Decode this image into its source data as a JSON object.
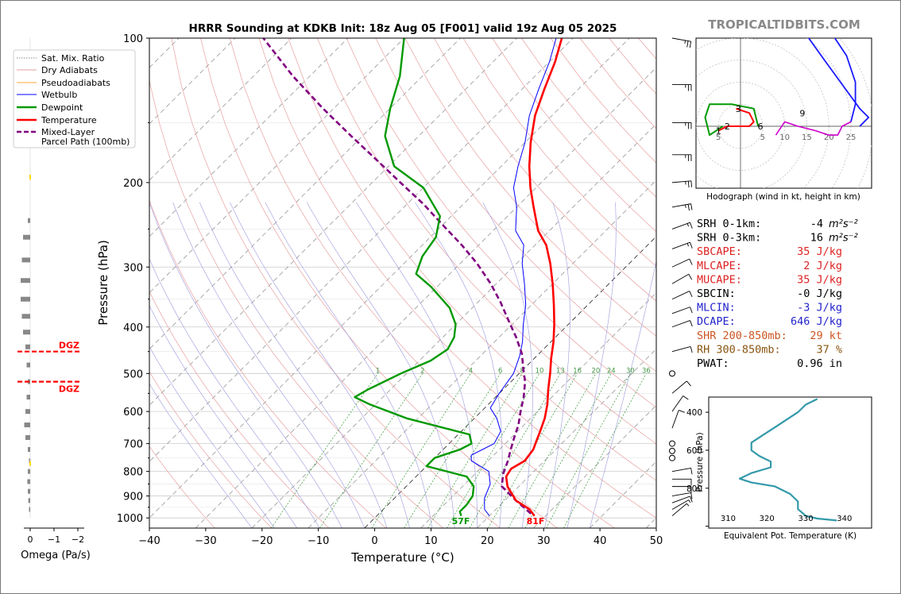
{
  "title": "HRRR Sounding at KDKB Init: 18z Aug 05 [F001] valid 19z Aug 05 2025",
  "watermark": "TROPICALTIDBITS.COM",
  "colors": {
    "temperature": "#ff0000",
    "dewpoint": "#009900",
    "wetbulb": "#0000ff",
    "parcel": "#800080",
    "dry_adiabat": "#e8a0a0",
    "moist_adiabat": "#9999dd",
    "mixing_ratio": "#339933",
    "hodo_blue": "#1a1aff",
    "hodo_magenta": "#cc00cc",
    "ept": "#3399aa",
    "red_text": "#dd2222",
    "blue_text": "#2222cc",
    "orange_text": "#cc5522",
    "brown_text": "#885511"
  },
  "skewt": {
    "xlabel": "Temperature (°C)",
    "ylabel": "Pressure (hPa)",
    "x_ticks": [
      "−40",
      "−30",
      "−20",
      "−10",
      "0",
      "10",
      "20",
      "30",
      "40",
      "50"
    ],
    "y_ticks": [
      "100",
      "200",
      "300",
      "400",
      "500",
      "600",
      "700",
      "800",
      "900",
      "1000"
    ],
    "mixing_ratio_labels": [
      "1",
      "2",
      "4",
      "6",
      "8",
      "10",
      "13",
      "16",
      "20",
      "24",
      "30",
      "36"
    ],
    "surface_temp_label": "81F",
    "surface_dew_label": "57F",
    "legend": [
      {
        "label": "Sat. Mix. Ratio",
        "style": "dotted"
      },
      {
        "label": "Dry Adiabats",
        "style": "dry"
      },
      {
        "label": "Pseudoadiabats",
        "style": "moist"
      },
      {
        "label": "Wetbulb",
        "style": "wetbulb"
      },
      {
        "label": "Dewpoint",
        "style": "dewpoint"
      },
      {
        "label": "Temperature",
        "style": "temperature"
      },
      {
        "label": "Mixed-Layer",
        "style": "parcel"
      },
      {
        "label": "Parcel Path (100mb)",
        "style": "none"
      }
    ]
  },
  "omega": {
    "xlabel": "Omega (Pa/s)",
    "x_ticks": [
      "0",
      "−1",
      "−2"
    ],
    "dgz_labels": [
      "DGZ",
      "DGZ"
    ]
  },
  "hodograph": {
    "caption": "Hodograph (wind in kt, height in km)",
    "ring_labels": [
      "5",
      "5",
      "10",
      "15",
      "20",
      "25"
    ],
    "height_labels": [
      "1",
      "2",
      "3",
      "6",
      "9"
    ],
    "markers": [
      "LM",
      "RM"
    ]
  },
  "params": [
    {
      "label": "SRH 0-1km:",
      "value": "-4",
      "unit": "m²s⁻²",
      "color": "#000000"
    },
    {
      "label": "SRH 0-3km:",
      "value": "16",
      "unit": "m²s⁻²",
      "color": "#000000"
    },
    {
      "label": "SBCAPE:",
      "value": "35 J/kg",
      "unit": "",
      "color": "#dd2222"
    },
    {
      "label": "MLCAPE:",
      "value": "2 J/kg",
      "unit": "",
      "color": "#dd2222"
    },
    {
      "label": "MUCAPE:",
      "value": "35 J/kg",
      "unit": "",
      "color": "#dd2222"
    },
    {
      "label": "SBCIN:",
      "value": "-0 J/kg",
      "unit": "",
      "color": "#000000"
    },
    {
      "label": "MLCIN:",
      "value": "-3 J/kg",
      "unit": "",
      "color": "#2222cc"
    },
    {
      "label": "DCAPE:",
      "value": "646 J/kg",
      "unit": "",
      "color": "#2222cc"
    },
    {
      "label": "SHR 200-850mb:",
      "value": "29 kt",
      "unit": "",
      "color": "#cc5522"
    },
    {
      "label": "RH 300-850mb:",
      "value": "37 %",
      "unit": "",
      "color": "#885511"
    },
    {
      "label": "PWAT:",
      "value": "0.96 in",
      "unit": "",
      "color": "#000000"
    }
  ],
  "ept_panel": {
    "xlabel": "Equivalent Pot. Temperature (K)",
    "ylabel": "Pressure (hPa)",
    "x_ticks": [
      "310",
      "320",
      "330",
      "340"
    ],
    "y_ticks": [
      "400",
      "600",
      "800"
    ]
  },
  "chart_data": [
    {
      "type": "line",
      "title": "HRRR Sounding at KDKB Init: 18z Aug 05 [F001] valid 19z Aug 05 2025",
      "xlabel": "Temperature (°C)",
      "ylabel": "Pressure (hPa)",
      "xlim": [
        -40,
        50
      ],
      "ylim": [
        1050,
        100
      ],
      "y_scale": "log",
      "grid": true,
      "legend_position": "left",
      "series": [
        {
          "name": "Temperature",
          "color": "#ff0000",
          "points": [
            [
              28,
              990
            ],
            [
              26,
              960
            ],
            [
              22,
              920
            ],
            [
              18,
              860
            ],
            [
              16,
              820
            ],
            [
              15.5,
              790
            ],
            [
              16.5,
              760
            ],
            [
              16,
              720
            ],
            [
              15,
              690
            ],
            [
              14,
              660
            ],
            [
              12.5,
              620
            ],
            [
              10.5,
              580
            ],
            [
              8,
              540
            ],
            [
              5.5,
              500
            ],
            [
              3,
              465
            ],
            [
              0.5,
              430
            ],
            [
              -2.5,
              395
            ],
            [
              -6,
              360
            ],
            [
              -10,
              325
            ],
            [
              -14,
              295
            ],
            [
              -18,
              270
            ],
            [
              -22,
              252
            ],
            [
              -27,
              225
            ],
            [
              -31,
              205
            ],
            [
              -35,
              185
            ],
            [
              -39,
              165
            ],
            [
              -43,
              145
            ],
            [
              -46,
              128
            ],
            [
              -49,
              112
            ],
            [
              -52,
              100
            ]
          ]
        },
        {
          "name": "Dewpoint",
          "color": "#009900",
          "points": [
            [
              15,
              990
            ],
            [
              14,
              970
            ],
            [
              14,
              940
            ],
            [
              13.5,
              900
            ],
            [
              12,
              860
            ],
            [
              9,
              820
            ],
            [
              0,
              780
            ],
            [
              0,
              750
            ],
            [
              3,
              720
            ],
            [
              4,
              700
            ],
            [
              2,
              670
            ],
            [
              -12,
              620
            ],
            [
              -21,
              580
            ],
            [
              -25,
              560
            ],
            [
              -24,
              540
            ],
            [
              -21,
              500
            ],
            [
              -18,
              470
            ],
            [
              -17,
              445
            ],
            [
              -18,
              420
            ],
            [
              -20,
              395
            ],
            [
              -24,
              365
            ],
            [
              -31,
              330
            ],
            [
              -36,
              310
            ],
            [
              -38,
              285
            ],
            [
              -39,
              260
            ],
            [
              -42,
              235
            ],
            [
              -50,
              205
            ],
            [
              -59,
              185
            ],
            [
              -66,
              160
            ],
            [
              -70,
              140
            ],
            [
              -74,
              120
            ],
            [
              -80,
              100
            ]
          ]
        },
        {
          "name": "Wetbulb",
          "color": "#0000ff",
          "points": [
            [
              20,
              990
            ],
            [
              18,
              960
            ],
            [
              16,
              910
            ],
            [
              14.5,
              850
            ],
            [
              12,
              800
            ],
            [
              7,
              760
            ],
            [
              6,
              740
            ],
            [
              7,
              720
            ],
            [
              8,
              700
            ],
            [
              7,
              660
            ],
            [
              4,
              620
            ],
            [
              1,
              590
            ],
            [
              0,
              550
            ],
            [
              -1,
              500
            ],
            [
              -3,
              460
            ],
            [
              -5,
              430
            ],
            [
              -8,
              395
            ],
            [
              -11,
              360
            ],
            [
              -15,
              325
            ],
            [
              -19,
              295
            ],
            [
              -22,
              270
            ],
            [
              -26,
              252
            ],
            [
              -30,
              225
            ],
            [
              -34,
              205
            ],
            [
              -37,
              185
            ],
            [
              -40,
              165
            ],
            [
              -44,
              145
            ],
            [
              -47,
              128
            ],
            [
              -50,
              112
            ],
            [
              -53,
              100
            ]
          ]
        },
        {
          "name": "Mixed-Layer Parcel Path (100mb)",
          "color": "#800080",
          "points": [
            [
              27,
              980
            ],
            [
              22,
              920
            ],
            [
              17,
              860
            ],
            [
              15,
              810
            ],
            [
              13.5,
              760
            ],
            [
              12,
              720
            ],
            [
              10.5,
              680
            ],
            [
              9,
              640
            ],
            [
              7,
              600
            ],
            [
              5,
              560
            ],
            [
              2.5,
              520
            ],
            [
              0,
              490
            ],
            [
              -3,
              455
            ],
            [
              -7,
              420
            ],
            [
              -11,
              390
            ],
            [
              -16,
              355
            ],
            [
              -21,
              325
            ],
            [
              -27,
              295
            ],
            [
              -33,
              270
            ],
            [
              -40,
              245
            ],
            [
              -47,
              222
            ],
            [
              -55,
              200
            ],
            [
              -63,
              180
            ],
            [
              -72,
              160
            ],
            [
              -82,
              140
            ],
            [
              -93,
              120
            ],
            [
              -105,
              100
            ]
          ]
        }
      ]
    },
    {
      "type": "line",
      "title": "",
      "xlabel": "Omega (Pa/s)",
      "xlim": [
        0.2,
        -2.2
      ],
      "ylim": [
        1050,
        100
      ],
      "series": [
        {
          "name": "Omega",
          "points": [
            [
              -0.1,
              240
            ],
            [
              -0.3,
              260
            ],
            [
              -0.35,
              290
            ],
            [
              -0.4,
              320
            ],
            [
              -0.4,
              350
            ],
            [
              -0.35,
              380
            ],
            [
              -0.3,
              410
            ],
            [
              -0.2,
              440
            ],
            [
              -0.15,
              480
            ],
            [
              -0.1,
              520
            ],
            [
              -0.15,
              560
            ],
            [
              -0.2,
              600
            ],
            [
              -0.25,
              640
            ],
            [
              -0.2,
              680
            ],
            [
              -0.1,
              720
            ],
            [
              -0.05,
              760
            ],
            [
              -0.1,
              800
            ],
            [
              -0.12,
              840
            ],
            [
              -0.1,
              880
            ],
            [
              -0.08,
              920
            ],
            [
              -0.05,
              960
            ]
          ]
        },
        {
          "name": "DGZ bounds",
          "levels": [
            450,
            520
          ]
        }
      ]
    },
    {
      "type": "line",
      "title": "",
      "xlabel": "",
      "xlim": [
        -25,
        30
      ],
      "ylim": [
        -28,
        40
      ],
      "series": [
        {
          "name": "Hodograph 0-3 km",
          "color": "#009900",
          "points": [
            [
              -4,
              0
            ],
            [
              -7,
              -2
            ],
            [
              -8,
              2
            ],
            [
              -7,
              5
            ],
            [
              -2,
              5
            ],
            [
              3,
              4
            ],
            [
              4,
              0
            ]
          ]
        },
        {
          "name": "Hodograph 0-1 km",
          "color": "#ff0000",
          "points": [
            [
              -5,
              -1
            ],
            [
              -3,
              0
            ],
            [
              2,
              0
            ],
            [
              3,
              1
            ],
            [
              2,
              3
            ],
            [
              -1,
              4
            ]
          ]
        },
        {
          "name": "Hodograph 3-9 km",
          "color": "#cc00cc",
          "points": [
            [
              8,
              -2
            ],
            [
              10,
              1
            ],
            [
              13,
              0
            ],
            [
              17,
              -1
            ],
            [
              20,
              -2
            ],
            [
              22,
              -2
            ],
            [
              23,
              0
            ],
            [
              25,
              1
            ]
          ]
        },
        {
          "name": "Hodograph 9-12 km",
          "color": "#1a1aff",
          "points": [
            [
              25,
              1
            ],
            [
              26,
              5
            ],
            [
              26,
              10
            ],
            [
              24,
              16
            ],
            [
              20,
              22
            ],
            [
              15,
              24
            ],
            [
              14,
              22
            ],
            [
              19,
              15
            ],
            [
              27,
              4
            ],
            [
              29,
              2
            ],
            [
              27,
              0
            ]
          ]
        }
      ]
    },
    {
      "type": "line",
      "title": "",
      "xlabel": "Equivalent Pot. Temperature (K)",
      "ylabel": "Pressure (hPa)",
      "xlim": [
        305,
        347
      ],
      "ylim": [
        1010,
        320
      ],
      "series": [
        {
          "name": "Theta-E",
          "color": "#3399aa",
          "points": [
            [
              333,
              330
            ],
            [
              330,
              360
            ],
            [
              328,
              400
            ],
            [
              325,
              440
            ],
            [
              322,
              480
            ],
            [
              319,
              520
            ],
            [
              316,
              560
            ],
            [
              316,
              600
            ],
            [
              318,
              630
            ],
            [
              321,
              660
            ],
            [
              321,
              690
            ],
            [
              316,
              720
            ],
            [
              313,
              750
            ],
            [
              316,
              770
            ],
            [
              322,
              790
            ],
            [
              326,
              830
            ],
            [
              328,
              870
            ],
            [
              328,
              910
            ],
            [
              330,
              945
            ],
            [
              333,
              960
            ],
            [
              338,
              970
            ]
          ]
        }
      ]
    }
  ]
}
